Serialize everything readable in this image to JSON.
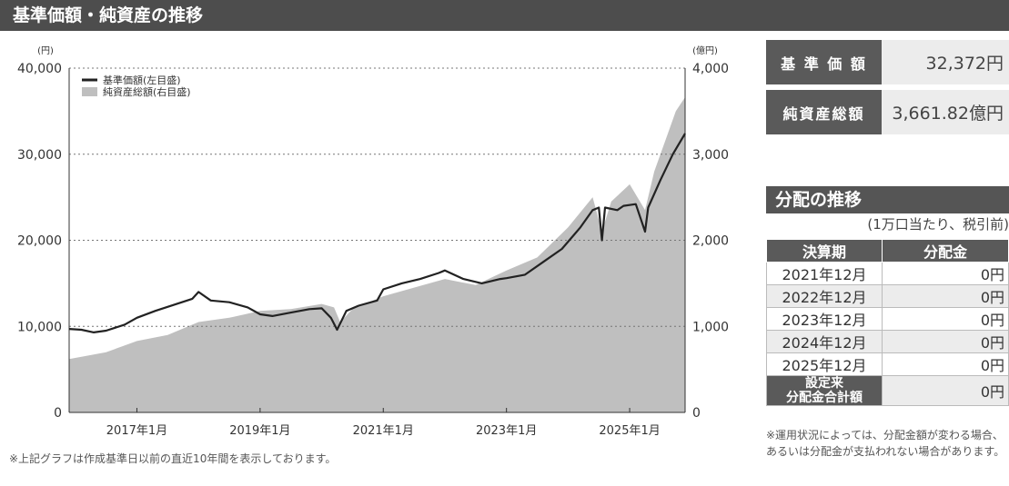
{
  "header": {
    "title": "基準価額・純資産の推移"
  },
  "chart_data": {
    "type": "line",
    "left_axis": {
      "unit": "(円)",
      "ticks": [
        "40,000",
        "30,000",
        "20,000",
        "10,000",
        "0"
      ],
      "range": [
        0,
        40000
      ]
    },
    "right_axis": {
      "unit": "(億円)",
      "ticks": [
        "4,000",
        "3,000",
        "2,000",
        "1,000",
        "0"
      ],
      "range": [
        0,
        4000
      ]
    },
    "x_ticks": [
      "2017年1月",
      "2019年1月",
      "2021年1月",
      "2023年1月",
      "2025年1月"
    ],
    "x_tick_values": [
      2017.0,
      2019.0,
      2021.0,
      2023.0,
      2025.0
    ],
    "x_range": [
      2015.9,
      2025.9
    ],
    "grid": true,
    "legend_position": "top-left",
    "series": [
      {
        "name": "基準価額(左目盛)",
        "color": "#222222",
        "x": [
          2015.9,
          2016.1,
          2016.3,
          2016.5,
          2016.8,
          2017.0,
          2017.3,
          2017.6,
          2017.9,
          2018.0,
          2018.2,
          2018.5,
          2018.8,
          2019.0,
          2019.2,
          2019.5,
          2019.8,
          2020.0,
          2020.15,
          2020.25,
          2020.4,
          2020.6,
          2020.9,
          2021.0,
          2021.3,
          2021.6,
          2021.9,
          2022.0,
          2022.3,
          2022.6,
          2022.9,
          2023.0,
          2023.3,
          2023.6,
          2023.9,
          2024.2,
          2024.4,
          2024.5,
          2024.55,
          2024.6,
          2024.8,
          2024.9,
          2025.1,
          2025.25,
          2025.3,
          2025.5,
          2025.7,
          2025.8,
          2025.9
        ],
        "values": [
          9700,
          9600,
          9300,
          9500,
          10200,
          11000,
          11800,
          12500,
          13200,
          14000,
          13000,
          12800,
          12200,
          11400,
          11200,
          11600,
          12000,
          12100,
          11000,
          9600,
          11800,
          12400,
          13000,
          14300,
          15000,
          15500,
          16200,
          16500,
          15500,
          15000,
          15500,
          15600,
          16000,
          17500,
          19000,
          21500,
          23500,
          23800,
          20000,
          23800,
          23500,
          24000,
          24200,
          21000,
          23800,
          27000,
          30000,
          31200,
          32400
        ]
      },
      {
        "name": "純資産総額(右目盛)",
        "color": "#bfbfbf",
        "x": [
          2015.9,
          2016.5,
          2017.0,
          2017.5,
          2018.0,
          2018.5,
          2019.0,
          2019.5,
          2020.0,
          2020.2,
          2020.3,
          2020.5,
          2021.0,
          2021.5,
          2022.0,
          2022.5,
          2023.0,
          2023.5,
          2024.0,
          2024.4,
          2024.55,
          2024.7,
          2025.0,
          2025.25,
          2025.4,
          2025.6,
          2025.75,
          2025.9
        ],
        "values": [
          620,
          700,
          830,
          900,
          1050,
          1100,
          1180,
          1200,
          1260,
          1220,
          1050,
          1200,
          1350,
          1450,
          1550,
          1480,
          1650,
          1800,
          2150,
          2500,
          2100,
          2450,
          2650,
          2350,
          2800,
          3200,
          3500,
          3662
        ]
      }
    ]
  },
  "stats": {
    "nav_label": "基 準 価 額",
    "nav_value": "32,372円",
    "aum_label": "純資産総額",
    "aum_value": "3,661.82億円"
  },
  "distribution": {
    "title": "分配の推移",
    "note": "(1万口当たり、税引前)",
    "col_period": "決算期",
    "col_amount": "分配金",
    "rows": [
      {
        "period": "2021年12月",
        "amount": "0円"
      },
      {
        "period": "2022年12月",
        "amount": "0円"
      },
      {
        "period": "2023年12月",
        "amount": "0円"
      },
      {
        "period": "2024年12月",
        "amount": "0円"
      },
      {
        "period": "2025年12月",
        "amount": "0円"
      }
    ],
    "total_label_1": "設定来",
    "total_label_2": "分配金合計額",
    "total_amount": "0円",
    "footnote": "※運用状況によっては、分配金額が変わる場合、あるいは分配金が支払われない場合があります。"
  },
  "chart_note": "※上記グラフは作成基準日以前の直近10年間を表示しております。"
}
